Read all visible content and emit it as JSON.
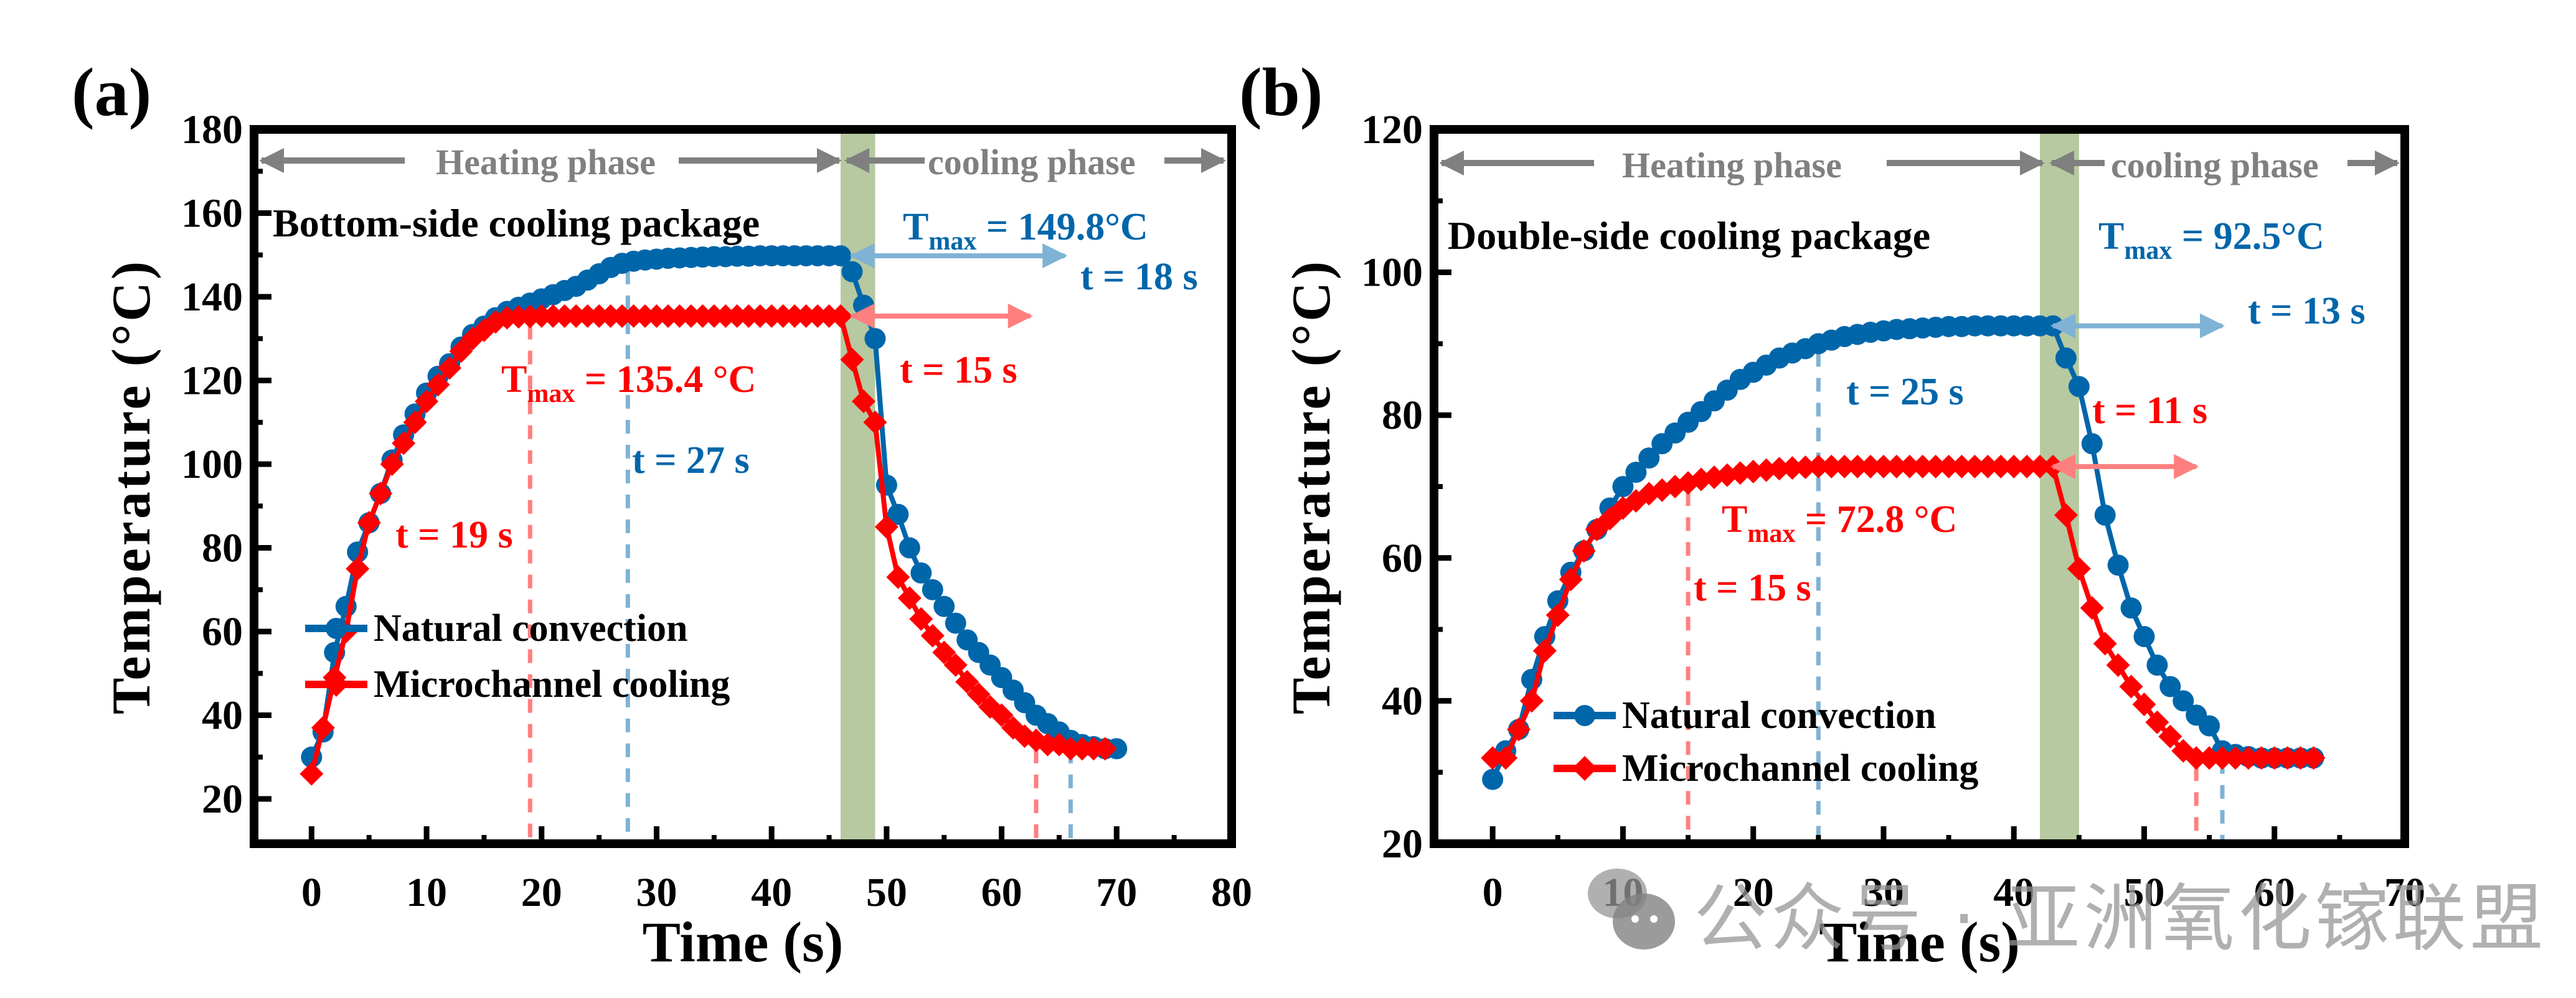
{
  "figure": {
    "watermark": "公众号 · 亚洲氧化镓联盟",
    "colors": {
      "natural": "#0066aa",
      "micro": "#ff0000",
      "phase_gray": "#808080",
      "band": "#a9bf8f",
      "dash_red": "#ff7f7f",
      "dash_blue": "#7fb2d4"
    }
  },
  "chart_data": [
    {
      "type": "line",
      "panel_label": "(a)",
      "title": "Bottom-side cooling package",
      "xlabel": "Time (s)",
      "ylabel": "Temperature (°C)",
      "xlim": [
        -5,
        80
      ],
      "ylim": [
        9.3,
        180
      ],
      "xticks": [
        0,
        10,
        20,
        30,
        40,
        50,
        60,
        70,
        80
      ],
      "yticks": [
        20,
        40,
        60,
        80,
        100,
        120,
        140,
        160,
        180
      ],
      "grid": false,
      "legend_position": "bottom-left",
      "phase_labels": {
        "heating": "Heating phase",
        "cooling": "cooling phase"
      },
      "transition_band": [
        46,
        49
      ],
      "series": [
        {
          "name": "Natural convection",
          "marker": "circle",
          "x": [
            0,
            1,
            2,
            3,
            4,
            5,
            6,
            7,
            8,
            9,
            10,
            11,
            12,
            13,
            14,
            15,
            16,
            17,
            18,
            19,
            20,
            21,
            22,
            23,
            24,
            25,
            26,
            27,
            28,
            29,
            30,
            31,
            32,
            33,
            34,
            35,
            36,
            37,
            38,
            39,
            40,
            41,
            42,
            43,
            44,
            45,
            46,
            47,
            48,
            49,
            50,
            51,
            52,
            53,
            54,
            55,
            56,
            57,
            58,
            59,
            60,
            61,
            62,
            63,
            64,
            65,
            66,
            67,
            68,
            69,
            70
          ],
          "y": [
            30,
            36,
            55,
            66,
            79,
            86,
            93,
            101,
            107,
            112,
            117,
            121,
            124,
            128,
            131,
            133,
            135,
            136.5,
            137.5,
            138.5,
            139.5,
            140.5,
            141.5,
            142.5,
            144,
            145.5,
            147,
            148,
            148.5,
            148.8,
            149,
            149.2,
            149.3,
            149.4,
            149.5,
            149.6,
            149.6,
            149.7,
            149.7,
            149.8,
            149.8,
            149.8,
            149.8,
            149.8,
            149.8,
            149.8,
            149.8,
            146,
            138,
            130,
            95,
            88,
            80,
            74,
            70,
            66,
            62,
            58,
            55,
            52,
            49,
            46,
            43,
            40,
            38,
            36,
            34,
            33,
            32.5,
            32,
            32
          ]
        },
        {
          "name": "Microchannel cooling",
          "marker": "diamond",
          "x": [
            0,
            1,
            2,
            3,
            4,
            5,
            6,
            7,
            8,
            9,
            10,
            11,
            12,
            13,
            14,
            15,
            16,
            17,
            18,
            19,
            20,
            21,
            22,
            23,
            24,
            25,
            26,
            27,
            28,
            29,
            30,
            31,
            32,
            33,
            34,
            35,
            36,
            37,
            38,
            39,
            40,
            41,
            42,
            43,
            44,
            45,
            46,
            47,
            48,
            49,
            50,
            51,
            52,
            53,
            54,
            55,
            56,
            57,
            58,
            59,
            60,
            61,
            62,
            63,
            64,
            65,
            66,
            67,
            68,
            69
          ],
          "y": [
            26,
            37,
            49,
            60,
            75,
            86,
            93,
            100,
            105,
            110,
            115,
            119,
            123,
            127,
            130,
            132,
            134,
            135,
            135.2,
            135.3,
            135.4,
            135.4,
            135.4,
            135.4,
            135.4,
            135.4,
            135.4,
            135.4,
            135.4,
            135.4,
            135.4,
            135.4,
            135.4,
            135.4,
            135.4,
            135.4,
            135.4,
            135.4,
            135.4,
            135.4,
            135.4,
            135.4,
            135.4,
            135.4,
            135.4,
            135.4,
            135.4,
            125,
            115,
            110,
            85,
            73,
            68,
            63,
            59,
            55,
            52,
            48,
            45,
            42,
            40,
            37,
            35,
            34,
            33,
            33,
            32,
            32,
            32,
            32
          ]
        }
      ],
      "annotations": [
        {
          "key": "tmax_natural",
          "T": "T",
          "sub": "max",
          "text": " = 149.8°C",
          "color": "natural"
        },
        {
          "key": "t_natural_cool",
          "text": "t = 18 s",
          "color": "natural"
        },
        {
          "key": "tmax_micro",
          "T": "T",
          "sub": "max",
          "text": " = 135.4 °C",
          "color": "micro"
        },
        {
          "key": "t_micro_cool",
          "text": "t = 15 s",
          "color": "micro"
        },
        {
          "key": "t_natural_heat",
          "text": "t = 27 s",
          "color": "natural"
        },
        {
          "key": "t_micro_heat",
          "text": "t = 19 s",
          "color": "micro"
        }
      ],
      "reference_lines": {
        "micro": [
          19,
          63
        ],
        "natural": [
          27.5,
          66
        ]
      },
      "duration_arrows": [
        {
          "series": "natural",
          "from": 47,
          "to": 65.5,
          "y": 149.8
        },
        {
          "series": "micro",
          "from": 47,
          "to": 62.5,
          "y": 135.4
        }
      ]
    },
    {
      "type": "line",
      "panel_label": "(b)",
      "title": "Double-side cooling  package",
      "xlabel": "Time (s)",
      "ylabel": "Temperature (°C)",
      "xlim": [
        -4.5,
        70
      ],
      "ylim": [
        20,
        120
      ],
      "xticks": [
        0,
        10,
        20,
        30,
        40,
        50,
        60,
        70
      ],
      "yticks": [
        20,
        40,
        60,
        80,
        100,
        120
      ],
      "grid": false,
      "legend_position": "bottom-left",
      "phase_labels": {
        "heating": "Heating phase",
        "cooling": "cooling phase"
      },
      "transition_band": [
        42,
        45
      ],
      "series": [
        {
          "name": "Natural convection",
          "marker": "circle",
          "x": [
            0,
            1,
            2,
            3,
            4,
            5,
            6,
            7,
            8,
            9,
            10,
            11,
            12,
            13,
            14,
            15,
            16,
            17,
            18,
            19,
            20,
            21,
            22,
            23,
            24,
            25,
            26,
            27,
            28,
            29,
            30,
            31,
            32,
            33,
            34,
            35,
            36,
            37,
            38,
            39,
            40,
            41,
            42,
            43,
            44,
            45,
            46,
            47,
            48,
            49,
            50,
            51,
            52,
            53,
            54,
            55,
            56,
            57,
            58,
            59,
            60,
            61,
            62,
            63
          ],
          "y": [
            29,
            33,
            36,
            43,
            49,
            54,
            58,
            61,
            64,
            67,
            70,
            72,
            74,
            76,
            77.5,
            79,
            80.5,
            82,
            83.5,
            85,
            86,
            87,
            88,
            88.7,
            89.3,
            90,
            90.5,
            91,
            91.3,
            91.6,
            91.8,
            92,
            92.1,
            92.2,
            92.3,
            92.4,
            92.4,
            92.5,
            92.5,
            92.5,
            92.5,
            92.5,
            92.5,
            92.5,
            88,
            84,
            76,
            66,
            59,
            53,
            49,
            45,
            42,
            40,
            38,
            36.5,
            33,
            32.5,
            32.2,
            32,
            32,
            32,
            32,
            32
          ]
        },
        {
          "name": "Microchannel cooling",
          "marker": "diamond",
          "x": [
            0,
            1,
            2,
            3,
            4,
            5,
            6,
            7,
            8,
            9,
            10,
            11,
            12,
            13,
            14,
            15,
            16,
            17,
            18,
            19,
            20,
            21,
            22,
            23,
            24,
            25,
            26,
            27,
            28,
            29,
            30,
            31,
            32,
            33,
            34,
            35,
            36,
            37,
            38,
            39,
            40,
            41,
            42,
            43,
            44,
            45,
            46,
            47,
            48,
            49,
            50,
            51,
            52,
            53,
            54,
            55,
            56,
            57,
            58,
            59,
            60,
            61,
            62,
            63
          ],
          "y": [
            32,
            32,
            36,
            40,
            47,
            52,
            57,
            61,
            64,
            65.5,
            67,
            68,
            69,
            69.5,
            70,
            70.5,
            71,
            71.3,
            71.6,
            71.9,
            72.1,
            72.3,
            72.5,
            72.6,
            72.7,
            72.8,
            72.8,
            72.8,
            72.8,
            72.8,
            72.8,
            72.8,
            72.8,
            72.8,
            72.8,
            72.8,
            72.8,
            72.8,
            72.8,
            72.8,
            72.8,
            72.8,
            72.8,
            72.8,
            66,
            58.5,
            53,
            48,
            45,
            42,
            39.5,
            37,
            35,
            33,
            32,
            32,
            32,
            32,
            32,
            32,
            32,
            32,
            32,
            32
          ]
        }
      ],
      "annotations": [
        {
          "key": "tmax_natural",
          "T": "T",
          "sub": "max",
          "text": " = 92.5°C",
          "color": "natural"
        },
        {
          "key": "t_natural_cool",
          "text": "t = 13 s",
          "color": "natural"
        },
        {
          "key": "tmax_micro",
          "T": "T",
          "sub": "max",
          "text": " = 72.8 °C",
          "color": "micro"
        },
        {
          "key": "t_micro_cool",
          "text": "t = 11 s",
          "color": "micro"
        },
        {
          "key": "t_natural_heat",
          "text": "t = 25 s",
          "color": "natural"
        },
        {
          "key": "t_micro_heat",
          "text": "t = 15 s",
          "color": "micro"
        }
      ],
      "reference_lines": {
        "micro": [
          15,
          54
        ],
        "natural": [
          25,
          56
        ]
      },
      "duration_arrows": [
        {
          "series": "natural",
          "from": 43,
          "to": 56,
          "y": 92.5
        },
        {
          "series": "micro",
          "from": 43,
          "to": 54,
          "y": 72.8
        }
      ]
    }
  ]
}
